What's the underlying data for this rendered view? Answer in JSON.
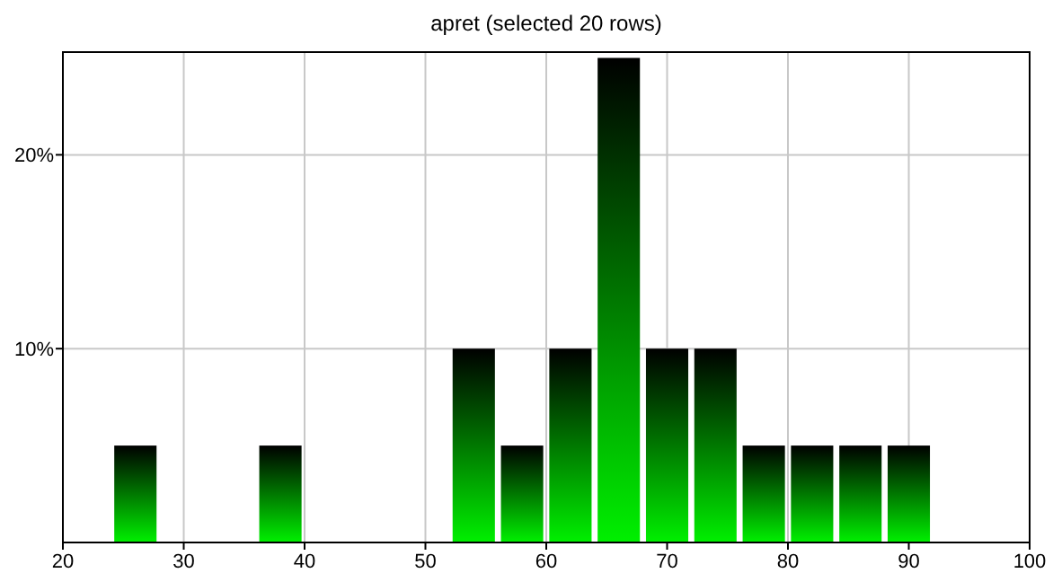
{
  "chart_data": {
    "type": "bar",
    "title": "apret (selected 20 rows)",
    "x": [
      26,
      38,
      54,
      58,
      62,
      66,
      70,
      74,
      78,
      82,
      86,
      90
    ],
    "values": [
      5,
      5,
      10,
      5,
      10,
      25,
      10,
      10,
      5,
      5,
      5,
      5
    ],
    "color": "#00f000",
    "xlim": [
      20,
      100
    ],
    "xticks": [
      20,
      30,
      40,
      50,
      60,
      70,
      80,
      90,
      100
    ],
    "ylim": [
      0,
      25.3
    ],
    "yticks": [
      {
        "value": 10,
        "label": "10%"
      },
      {
        "value": 20,
        "label": "20%"
      }
    ],
    "grid": true
  }
}
